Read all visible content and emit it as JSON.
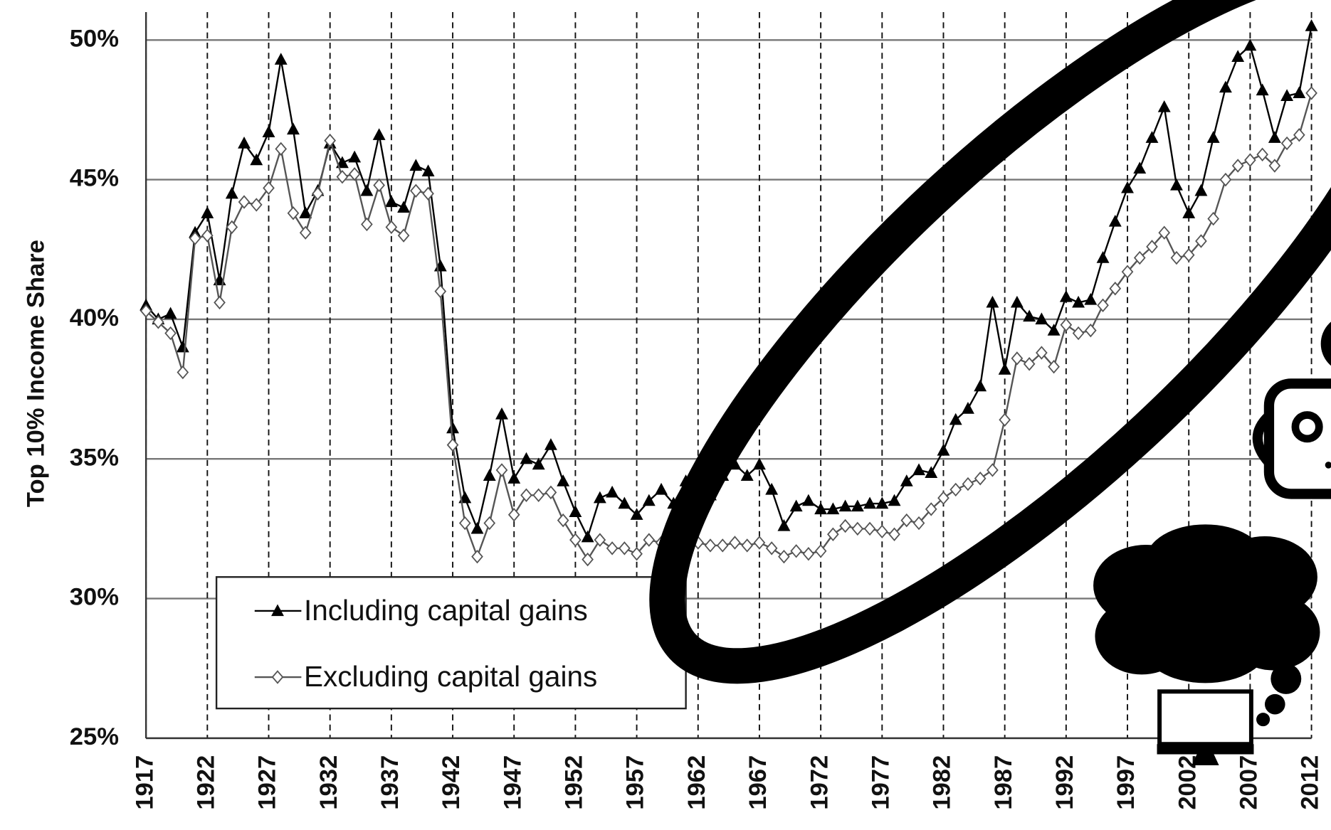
{
  "chart_data": {
    "type": "line",
    "ylabel": "Top 10% Income Share",
    "x": [
      1917,
      1918,
      1919,
      1920,
      1921,
      1922,
      1923,
      1924,
      1925,
      1926,
      1927,
      1928,
      1929,
      1930,
      1931,
      1932,
      1933,
      1934,
      1935,
      1936,
      1937,
      1938,
      1939,
      1940,
      1941,
      1942,
      1943,
      1944,
      1945,
      1946,
      1947,
      1948,
      1949,
      1950,
      1951,
      1952,
      1953,
      1954,
      1955,
      1956,
      1957,
      1958,
      1959,
      1960,
      1961,
      1962,
      1963,
      1964,
      1965,
      1966,
      1967,
      1968,
      1969,
      1970,
      1971,
      1972,
      1973,
      1974,
      1975,
      1976,
      1977,
      1978,
      1979,
      1980,
      1981,
      1982,
      1983,
      1984,
      1985,
      1986,
      1987,
      1988,
      1989,
      1990,
      1991,
      1992,
      1993,
      1994,
      1995,
      1996,
      1997,
      1998,
      1999,
      2000,
      2001,
      2002,
      2003,
      2004,
      2005,
      2006,
      2007,
      2008,
      2009,
      2010,
      2011,
      2012
    ],
    "series": [
      {
        "name": "Including capital gains",
        "color": "#000000",
        "marker": "triangle",
        "values": [
          40.5,
          40.0,
          40.2,
          39.0,
          43.1,
          43.8,
          41.4,
          44.5,
          46.3,
          45.7,
          46.7,
          49.3,
          46.8,
          43.8,
          44.6,
          46.3,
          45.6,
          45.8,
          44.6,
          46.6,
          44.2,
          44.0,
          45.5,
          45.3,
          41.9,
          36.1,
          33.6,
          32.5,
          34.4,
          36.6,
          34.3,
          35.0,
          34.8,
          35.5,
          34.2,
          33.1,
          32.2,
          33.6,
          33.8,
          33.4,
          33.0,
          33.5,
          33.9,
          33.4,
          34.2,
          33.6,
          33.7,
          34.4,
          34.8,
          34.4,
          34.8,
          33.9,
          32.6,
          33.3,
          33.5,
          33.2,
          33.2,
          33.3,
          33.3,
          33.4,
          33.4,
          33.5,
          34.2,
          34.6,
          34.5,
          35.3,
          36.4,
          36.8,
          37.6,
          40.6,
          38.2,
          40.6,
          40.1,
          40.0,
          39.6,
          40.8,
          40.6,
          40.7,
          42.2,
          43.5,
          44.7,
          45.4,
          46.5,
          47.6,
          44.8,
          43.8,
          44.6,
          46.5,
          48.3,
          49.4,
          49.8,
          48.2,
          46.5,
          48.0,
          48.1,
          50.5
        ]
      },
      {
        "name": "Excluding capital gains",
        "color": "#555555",
        "marker": "diamond",
        "values": [
          40.3,
          39.9,
          39.5,
          38.1,
          42.9,
          43.0,
          40.6,
          43.3,
          44.2,
          44.1,
          44.7,
          46.1,
          43.8,
          43.1,
          44.5,
          46.4,
          45.1,
          45.2,
          43.4,
          44.8,
          43.3,
          43.0,
          44.6,
          44.5,
          41.0,
          35.5,
          32.7,
          31.5,
          32.7,
          34.6,
          33.0,
          33.7,
          33.7,
          33.8,
          32.8,
          32.1,
          31.4,
          32.1,
          31.8,
          31.8,
          31.6,
          32.1,
          32.0,
          31.6,
          31.9,
          32.0,
          31.9,
          31.9,
          32.0,
          31.9,
          32.0,
          31.8,
          31.5,
          31.7,
          31.6,
          31.7,
          32.3,
          32.6,
          32.5,
          32.5,
          32.4,
          32.3,
          32.8,
          32.7,
          33.2,
          33.6,
          33.9,
          34.1,
          34.3,
          34.6,
          36.4,
          38.6,
          38.4,
          38.8,
          38.3,
          39.8,
          39.5,
          39.6,
          40.5,
          41.1,
          41.7,
          42.2,
          42.6,
          43.1,
          42.2,
          42.3,
          42.8,
          43.6,
          45.0,
          45.5,
          45.7,
          45.9,
          45.5,
          46.3,
          46.6,
          48.1
        ]
      }
    ],
    "xlim": [
      1917,
      2012
    ],
    "xticks": [
      1917,
      1922,
      1927,
      1932,
      1937,
      1942,
      1947,
      1952,
      1957,
      1962,
      1967,
      1972,
      1977,
      1982,
      1987,
      1992,
      1997,
      2002,
      2007,
      2012
    ],
    "ylim": [
      25,
      51
    ],
    "yticks": [
      {
        "value": 25,
        "label": "25%"
      },
      {
        "value": 30,
        "label": "30%"
      },
      {
        "value": 35,
        "label": "35%"
      },
      {
        "value": 40,
        "label": "40%"
      },
      {
        "value": 45,
        "label": "45%"
      },
      {
        "value": 50,
        "label": "50%"
      }
    ],
    "grid": true,
    "legend": "lower left"
  }
}
